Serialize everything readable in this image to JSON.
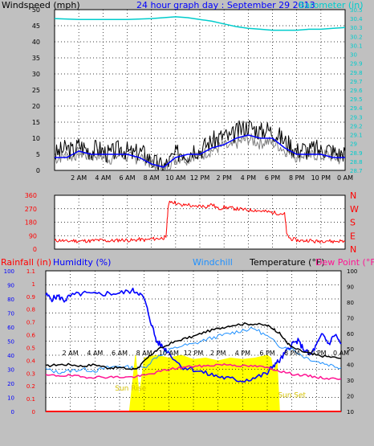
{
  "colors": {
    "background": "#c0c0c0",
    "plot_background": "#ffffff",
    "grid": "#000000",
    "windspeed": "#000000",
    "wind_gust_shadow": "#808080",
    "wind_avg": "#0000ff",
    "barometer": "#00cccc",
    "direction": "#ff0000",
    "direction_labels": "#ff0000",
    "rainfall": "#ff0000",
    "humidity": "#0000ff",
    "windchill": "#1e90ff",
    "temperature": "#000000",
    "dew_point": "#ff1493",
    "solar": "#ffff00",
    "sunrise_label": "#d4c000"
  },
  "chart_data": [
    {
      "type": "line",
      "title": "24 hour graph day : September 29 2013",
      "x_ticks": [
        "2 AM",
        "4 AM",
        "6 AM",
        "8 AM",
        "10 AM",
        "12 PM",
        "2 PM",
        "4 PM",
        "6 PM",
        "8 PM",
        "10 PM",
        "0 AM"
      ],
      "xlim_hours": [
        0,
        24
      ],
      "left_axis": {
        "label": "Windspeed (mph)",
        "ylim": [
          0,
          50
        ],
        "ticks": [
          "0",
          "5",
          "10",
          "15",
          "20",
          "25",
          "30",
          "35",
          "40",
          "45",
          "50"
        ]
      },
      "right_axis": {
        "label": "Barometer (in)",
        "ylim": [
          28.7,
          30.5
        ],
        "ticks": [
          "28.7",
          "28.8",
          "28.9",
          "29",
          "29.1",
          "29.2",
          "29.3",
          "29.4",
          "29.5",
          "29.6",
          "29.7",
          "29.8",
          "29.9",
          "30",
          "30.1",
          "30.2",
          "30.3",
          "30.4",
          "30.5"
        ]
      },
      "grid": true,
      "series": [
        {
          "name": "Windspeed (mph)",
          "axis": "left",
          "x": [
            0,
            0.5,
            1,
            1.5,
            2,
            2.5,
            3,
            3.5,
            4,
            4.5,
            5,
            5.5,
            6,
            6.5,
            7,
            7.5,
            8,
            8.5,
            9,
            9.5,
            10,
            10.5,
            11,
            11.5,
            12,
            12.5,
            13,
            13.5,
            14,
            14.5,
            15,
            15.5,
            16,
            16.5,
            17,
            17.5,
            18,
            18.5,
            19,
            19.5,
            20,
            20.5,
            21,
            21.5,
            22,
            22.5,
            23,
            23.5,
            24
          ],
          "values": [
            5,
            6,
            7,
            6,
            8,
            7,
            6,
            7,
            6,
            5,
            6,
            7,
            6,
            5,
            6,
            5,
            3,
            2,
            1,
            3,
            5,
            6,
            5,
            7,
            6,
            8,
            9,
            10,
            11,
            10,
            12,
            13,
            14,
            13,
            12,
            13,
            12,
            11,
            9,
            8,
            6,
            7,
            6,
            7,
            6,
            7,
            6,
            5,
            6
          ]
        },
        {
          "name": "Wind average",
          "axis": "left",
          "x": [
            0,
            1,
            2,
            3,
            4,
            5,
            6,
            7,
            8,
            9,
            10,
            11,
            12,
            13,
            14,
            15,
            16,
            17,
            18,
            19,
            20,
            21,
            22,
            23,
            24
          ],
          "values": [
            4,
            4,
            6,
            5,
            5,
            5,
            5,
            4,
            2,
            1,
            4,
            5,
            5,
            7,
            8,
            10,
            11,
            10,
            10,
            7,
            5,
            5,
            5,
            4,
            4
          ]
        },
        {
          "name": "Barometer (in)",
          "axis": "right",
          "x": [
            0,
            2,
            4,
            6,
            8,
            9,
            10,
            11,
            12,
            13,
            14,
            15,
            16,
            17,
            18,
            19,
            20,
            21,
            22,
            23,
            24
          ],
          "values": [
            30.4,
            30.39,
            30.39,
            30.39,
            30.4,
            30.41,
            30.42,
            30.41,
            30.39,
            30.37,
            30.34,
            30.31,
            30.29,
            30.28,
            30.27,
            30.27,
            30.27,
            30.28,
            30.28,
            30.29,
            30.3
          ]
        }
      ]
    },
    {
      "type": "scatter",
      "xlim_hours": [
        0,
        24
      ],
      "left_axis": {
        "ylim": [
          0,
          360
        ],
        "ticks": [
          "0",
          "90",
          "180",
          "270",
          "360"
        ]
      },
      "right_axis": {
        "ticks": [
          "N",
          "E",
          "S",
          "W",
          "N"
        ]
      },
      "grid": true,
      "series": [
        {
          "name": "Wind direction",
          "x": [
            0,
            0.5,
            1,
            1.5,
            2,
            2.5,
            3,
            3.5,
            4,
            4.5,
            5,
            5.5,
            6,
            6.5,
            7,
            7.5,
            8,
            8.5,
            9,
            9.2,
            9.4,
            9.6,
            10,
            10.5,
            11,
            11.5,
            12,
            12.5,
            13,
            13.5,
            14,
            14.5,
            15,
            15.5,
            16,
            16.5,
            17,
            17.5,
            18,
            18.5,
            19,
            19.2,
            19.5,
            20,
            20.5,
            21,
            21.5,
            22,
            22.5,
            23,
            23.5,
            24
          ],
          "values": [
            55,
            60,
            50,
            58,
            52,
            56,
            54,
            60,
            58,
            55,
            57,
            62,
            60,
            58,
            65,
            60,
            68,
            70,
            75,
            80,
            300,
            320,
            310,
            290,
            300,
            280,
            290,
            285,
            300,
            270,
            280,
            275,
            270,
            265,
            260,
            262,
            255,
            250,
            245,
            240,
            235,
            90,
            70,
            60,
            55,
            60,
            50,
            55,
            58,
            50,
            55,
            52
          ]
        }
      ]
    },
    {
      "type": "line",
      "xlim_hours": [
        0,
        24
      ],
      "rainfall_axis": {
        "label": "Rainfall (in)",
        "ylim": [
          0,
          100
        ],
        "ticks": [
          "0",
          "0.1",
          "0.2",
          "0.3",
          "0.4",
          "0.5",
          "0.6",
          "0.7",
          "0.8",
          "0.9",
          "1",
          "1.1"
        ]
      },
      "humidity_axis": {
        "label": "Humidity (%)",
        "ylim": [
          0,
          100
        ],
        "ticks": [
          "0",
          "10",
          "20",
          "30",
          "40",
          "50",
          "60",
          "70",
          "80",
          "90",
          "100"
        ]
      },
      "temperature_axis": {
        "label": "Temperature (°F)",
        "ylim": [
          10,
          100
        ],
        "ticks": [
          "10",
          "20",
          "30",
          "40",
          "50",
          "60",
          "70",
          "80",
          "90",
          "100"
        ]
      },
      "windchill_label": "Windchill",
      "dewpoint_label": "Dew Point (°F)",
      "sunrise_label": "Sun Rise",
      "sunrise_hour": 6.8,
      "sunset_label": "Sun Set",
      "sunset_hour": 19.0,
      "grid": true,
      "series": [
        {
          "name": "Humidity (%)",
          "axis": "humidity",
          "x": [
            0,
            0.5,
            1,
            1.5,
            2,
            3,
            4,
            5,
            6,
            7,
            7.5,
            8,
            8.5,
            9,
            9.5,
            10,
            11,
            12,
            13,
            14,
            15,
            16,
            17,
            18,
            18.5,
            19,
            19.5,
            20,
            20.5,
            21,
            21.5,
            22,
            22.5,
            23,
            23.5,
            24
          ],
          "values": [
            83,
            80,
            82,
            79,
            82,
            84,
            83,
            84,
            84,
            86,
            85,
            80,
            65,
            50,
            46,
            42,
            32,
            30,
            27,
            25,
            23,
            22,
            24,
            27,
            33,
            36,
            42,
            48,
            50,
            44,
            40,
            47,
            55,
            48,
            55,
            48
          ]
        },
        {
          "name": "Windchill",
          "axis": "temperature",
          "x": [
            0,
            1,
            2,
            3,
            4,
            5,
            6,
            7,
            8,
            9,
            10,
            11,
            12,
            13,
            14,
            15,
            16,
            17,
            18,
            19,
            20,
            21,
            22,
            23,
            24
          ],
          "values": [
            37,
            35,
            36,
            37,
            36,
            38,
            39,
            38,
            38,
            45,
            49,
            52,
            53,
            56,
            58,
            60,
            62,
            63,
            58,
            52,
            50,
            45,
            42,
            40,
            38
          ]
        },
        {
          "name": "Temperature (°F)",
          "axis": "temperature",
          "x": [
            0,
            1,
            2,
            3,
            4,
            5,
            6,
            7,
            7.5,
            8,
            8.5,
            9,
            10,
            11,
            12,
            13,
            14,
            15,
            16,
            17,
            18,
            18.5,
            19,
            19.5,
            20,
            21,
            22,
            23,
            24
          ],
          "values": [
            39,
            40,
            40,
            39,
            40,
            38,
            38,
            37,
            38,
            42,
            46,
            49,
            53,
            56,
            58,
            61,
            63,
            65,
            66,
            66,
            65,
            63,
            60,
            55,
            51,
            48,
            46,
            45,
            44
          ]
        },
        {
          "name": "Dew Point (°F)",
          "axis": "temperature",
          "x": [
            0,
            1,
            2,
            3,
            4,
            5,
            6,
            7,
            8,
            9,
            10,
            11,
            12,
            13,
            14,
            15,
            16,
            17,
            18,
            19,
            20,
            21,
            22,
            23,
            24
          ],
          "values": [
            33,
            33,
            33,
            32,
            32,
            32,
            32,
            32,
            33,
            35,
            37,
            38,
            39,
            39,
            40,
            40,
            39,
            39,
            38,
            36,
            34,
            33,
            32,
            31,
            31
          ]
        },
        {
          "name": "Solar",
          "axis": "humidity",
          "x": [
            6.8,
            7.3,
            7.6,
            8.0,
            9.0,
            10.0,
            11.0,
            12.0,
            13.0,
            14.0,
            15.0,
            16.0,
            17.0,
            17.5,
            18.0,
            18.3,
            18.5,
            18.8,
            19.0
          ],
          "values": [
            0,
            40,
            10,
            38,
            40,
            38,
            40,
            37,
            38,
            36,
            38,
            37,
            38,
            39,
            40,
            38,
            28,
            35,
            0
          ]
        },
        {
          "name": "Rainfall (in)",
          "axis": "rainfall",
          "x": [
            0,
            24
          ],
          "values": [
            0,
            0
          ]
        }
      ]
    }
  ]
}
